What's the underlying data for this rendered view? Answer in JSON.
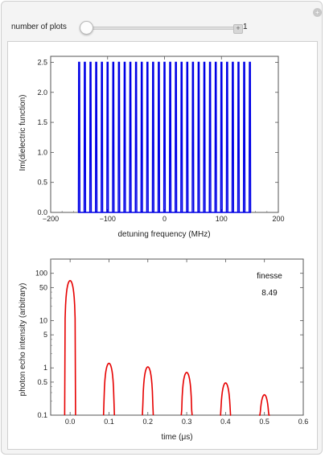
{
  "controls": {
    "number_of_plots_label": "number of plots",
    "number_of_plots_value": "1",
    "number_of_plots_numeric": 1,
    "plus_symbol": "+",
    "reset_symbol": "+"
  },
  "colors": {
    "top_series": "#0000e6",
    "bottom_series": "#e60000"
  },
  "chart_data": [
    {
      "type": "line",
      "title": "",
      "xlabel": "detuning frequency (MHz)",
      "ylabel": "Im(dielectric function)",
      "xlim": [
        -200,
        200
      ],
      "ylim": [
        0,
        2.6
      ],
      "x_ticks": [
        -200,
        -100,
        0,
        100,
        200
      ],
      "x_tick_labels": [
        "−200",
        "−100",
        "0",
        "100",
        "200"
      ],
      "y_ticks": [
        0.0,
        0.5,
        1.0,
        1.5,
        2.0,
        2.5
      ],
      "y_tick_labels": [
        "0.0",
        "0.5",
        "1.0",
        "1.5",
        "2.0",
        "2.5"
      ],
      "series": [
        {
          "peak_height": 2.5,
          "peak_spacing": 10,
          "peak_centers": [
            -150,
            -140,
            -130,
            -120,
            -110,
            -100,
            -90,
            -80,
            -70,
            -60,
            -50,
            -40,
            -30,
            -20,
            -10,
            0,
            10,
            20,
            30,
            40,
            50,
            60,
            70,
            80,
            90,
            100,
            110,
            120,
            130,
            140,
            150
          ],
          "color": "#0000e6"
        }
      ],
      "grid": false
    },
    {
      "type": "line",
      "title": "",
      "xlabel": "time (μs)",
      "ylabel": "photon echo intensity (arbitrary)",
      "xlim": [
        -0.05,
        0.6
      ],
      "ylim": [
        0.1,
        200
      ],
      "y_scale": "log",
      "x_ticks": [
        0.0,
        0.1,
        0.2,
        0.3,
        0.4,
        0.5,
        0.6
      ],
      "x_tick_labels": [
        "0.0",
        "0.1",
        "0.2",
        "0.3",
        "0.4",
        "0.5",
        "0.6"
      ],
      "y_ticks": [
        0.1,
        0.5,
        1,
        5,
        10,
        50,
        100
      ],
      "y_tick_labels": [
        "0.1",
        "0.5",
        "1",
        "5",
        "10",
        "50",
        "100"
      ],
      "series": [
        {
          "echo_times": [
            0.0,
            0.1,
            0.2,
            0.3,
            0.4,
            0.5
          ],
          "echo_peaks": [
            70,
            1.25,
            1.05,
            0.8,
            0.48,
            0.27
          ],
          "color": "#e60000"
        }
      ],
      "annotations": [
        "finesse",
        "8.49"
      ],
      "grid": false
    }
  ]
}
